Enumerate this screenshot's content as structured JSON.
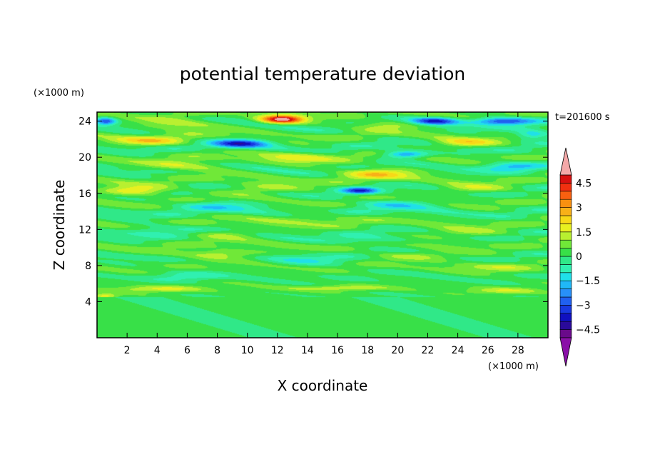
{
  "chart_data": {
    "type": "heatmap",
    "title": "potential temperature deviation",
    "xlabel": "X coordinate",
    "ylabel": "Z coordinate",
    "x_unit": "(×1000 m)",
    "y_unit": "(×1000 m)",
    "time_label": "t=201600 s",
    "xlim": [
      0,
      30
    ],
    "ylim": [
      0,
      25
    ],
    "x_ticks": [
      2,
      4,
      6,
      8,
      10,
      12,
      14,
      16,
      18,
      20,
      22,
      24,
      26,
      28
    ],
    "y_ticks": [
      4,
      8,
      12,
      16,
      20,
      24
    ],
    "colorbar": {
      "levels": [
        -5,
        -4.5,
        -4,
        -3.5,
        -3,
        -2.5,
        -2,
        -1.5,
        -1,
        -0.5,
        0,
        0.5,
        1,
        1.5,
        2,
        2.5,
        3,
        3.5,
        4,
        4.5,
        5
      ],
      "colors": [
        "#6a0a8a",
        "#2a0a9a",
        "#1010c0",
        "#1838e0",
        "#2060f0",
        "#2890f8",
        "#20b8f8",
        "#20e0e8",
        "#30f0b0",
        "#30e888",
        "#38e048",
        "#70e838",
        "#b8f030",
        "#e8f020",
        "#f8d818",
        "#f8b018",
        "#f89010",
        "#f86010",
        "#f03010",
        "#d81010"
      ],
      "under_color": "#8a10a8",
      "over_color": "#f4a8a8",
      "tick_labels": [
        "4.5",
        "3",
        "1.5",
        "0",
        "−1.5",
        "−3",
        "−4.5"
      ],
      "tick_values": [
        4.5,
        3,
        1.5,
        0,
        -1.5,
        -3,
        -4.5
      ]
    },
    "features": [
      {
        "x": 12.3,
        "z": 24.2,
        "sx": 1.4,
        "sz": 0.45,
        "a": 5.0
      },
      {
        "x": 5.5,
        "z": 23.6,
        "sx": 2.5,
        "sz": 0.6,
        "a": 1.6
      },
      {
        "x": 19.0,
        "z": 23.5,
        "sx": 2.5,
        "sz": 0.5,
        "a": 1.3
      },
      {
        "x": 22.5,
        "z": 24.0,
        "sx": 1.5,
        "sz": 0.4,
        "a": -3.6
      },
      {
        "x": 27.0,
        "z": 24.0,
        "sx": 2.0,
        "sz": 0.4,
        "a": -3.6
      },
      {
        "x": 0.6,
        "z": 24.0,
        "sx": 0.7,
        "sz": 0.4,
        "a": -3.0
      },
      {
        "x": 9.5,
        "z": 21.5,
        "sx": 1.8,
        "sz": 0.45,
        "a": -3.6
      },
      {
        "x": 3.5,
        "z": 21.8,
        "sx": 2.5,
        "sz": 0.5,
        "a": 1.8
      },
      {
        "x": 24.5,
        "z": 21.6,
        "sx": 2.0,
        "sz": 0.5,
        "a": 1.8
      },
      {
        "x": 20.5,
        "z": 20.3,
        "sx": 1.5,
        "sz": 0.4,
        "a": -2.6
      },
      {
        "x": 13.5,
        "z": 20.0,
        "sx": 2.5,
        "sz": 0.6,
        "a": 1.4
      },
      {
        "x": 29.0,
        "z": 22.5,
        "sx": 1.2,
        "sz": 0.5,
        "a": -2.0
      },
      {
        "x": 18.5,
        "z": 18.2,
        "sx": 2.5,
        "sz": 0.6,
        "a": 2.0
      },
      {
        "x": 6.0,
        "z": 19.0,
        "sx": 2.5,
        "sz": 0.6,
        "a": 1.5
      },
      {
        "x": 27.5,
        "z": 19.0,
        "sx": 2.0,
        "sz": 0.5,
        "a": -1.8
      },
      {
        "x": 17.5,
        "z": 16.3,
        "sx": 1.2,
        "sz": 0.35,
        "a": -3.2
      },
      {
        "x": 2.5,
        "z": 16.3,
        "sx": 2.5,
        "sz": 0.55,
        "a": 2.0
      },
      {
        "x": 11.0,
        "z": 16.5,
        "sx": 2.5,
        "sz": 0.6,
        "a": 1.3
      },
      {
        "x": 25.0,
        "z": 16.5,
        "sx": 2.5,
        "sz": 0.5,
        "a": 1.2
      },
      {
        "x": 20.0,
        "z": 14.8,
        "sx": 3.0,
        "sz": 0.6,
        "a": -1.3
      },
      {
        "x": 8.0,
        "z": 14.6,
        "sx": 3.0,
        "sz": 0.6,
        "a": -1.2
      },
      {
        "x": 14.0,
        "z": 13.2,
        "sx": 3.0,
        "sz": 0.6,
        "a": 0.9
      },
      {
        "x": 4.0,
        "z": 12.0,
        "sx": 2.5,
        "sz": 0.6,
        "a": -1.0
      },
      {
        "x": 24.0,
        "z": 11.6,
        "sx": 3.0,
        "sz": 0.6,
        "a": 1.0
      },
      {
        "x": 8.5,
        "z": 11.5,
        "sx": 2.5,
        "sz": 0.5,
        "a": 1.0
      },
      {
        "x": 18.5,
        "z": 10.8,
        "sx": 2.5,
        "sz": 0.5,
        "a": -1.0
      },
      {
        "x": 8.0,
        "z": 9.3,
        "sx": 3.0,
        "sz": 0.5,
        "a": 1.5
      },
      {
        "x": 21.5,
        "z": 9.1,
        "sx": 3.0,
        "sz": 0.5,
        "a": 1.2
      },
      {
        "x": 14.0,
        "z": 8.6,
        "sx": 2.5,
        "sz": 0.6,
        "a": -0.9
      },
      {
        "x": 26.5,
        "z": 7.8,
        "sx": 2.5,
        "sz": 0.5,
        "a": 1.0
      },
      {
        "x": 6.0,
        "z": 6.8,
        "sx": 2.5,
        "sz": 0.5,
        "a": -0.9
      },
      {
        "x": 4.0,
        "z": 5.4,
        "sx": 3.0,
        "sz": 0.35,
        "a": 1.4
      },
      {
        "x": 16.0,
        "z": 5.5,
        "sx": 3.5,
        "sz": 0.3,
        "a": 1.2
      },
      {
        "x": 27.0,
        "z": 5.2,
        "sx": 2.5,
        "sz": 0.35,
        "a": 1.2
      },
      {
        "x": 0.5,
        "z": 4.6,
        "sx": 0.8,
        "sz": 0.3,
        "a": 1.8
      },
      {
        "x": 19.0,
        "z": 3.2,
        "sx": 3.0,
        "sz": 1.0,
        "a": -0.35
      },
      {
        "x": 5.0,
        "z": 2.5,
        "sx": 3.0,
        "sz": 1.0,
        "a": 0.35
      }
    ]
  }
}
